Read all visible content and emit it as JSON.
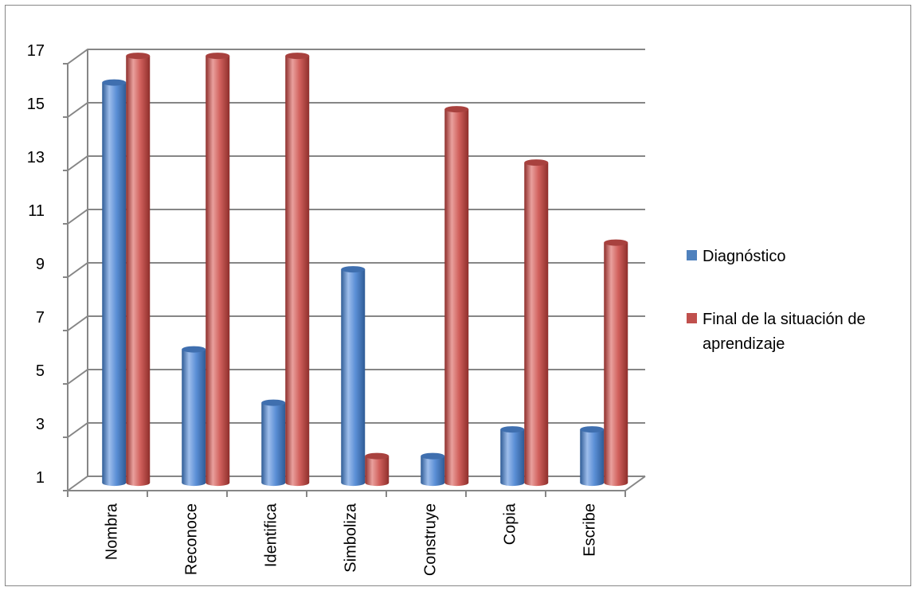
{
  "chart_data": {
    "type": "bar",
    "categories": [
      "Nombra",
      "Reconoce",
      "Identifica",
      "Simboliza",
      "Construye",
      "Copia",
      "Escribe"
    ],
    "series": [
      {
        "name": "Diagnóstico",
        "values": [
          16,
          6,
          4,
          9,
          2,
          3,
          3
        ],
        "color": "#4F81BD"
      },
      {
        "name": "Final de la situación de aprendizaje",
        "values": [
          17,
          17,
          17,
          2,
          15,
          13,
          10
        ],
        "color": "#C0504D"
      }
    ],
    "title": "",
    "xlabel": "",
    "ylabel": "",
    "ylim": [
      1,
      17
    ],
    "yticks": [
      "1",
      "3",
      "5",
      "7",
      "9",
      "11",
      "13",
      "15",
      "17"
    ],
    "grid": true,
    "legend": "right",
    "style": "3d-cylinder"
  }
}
